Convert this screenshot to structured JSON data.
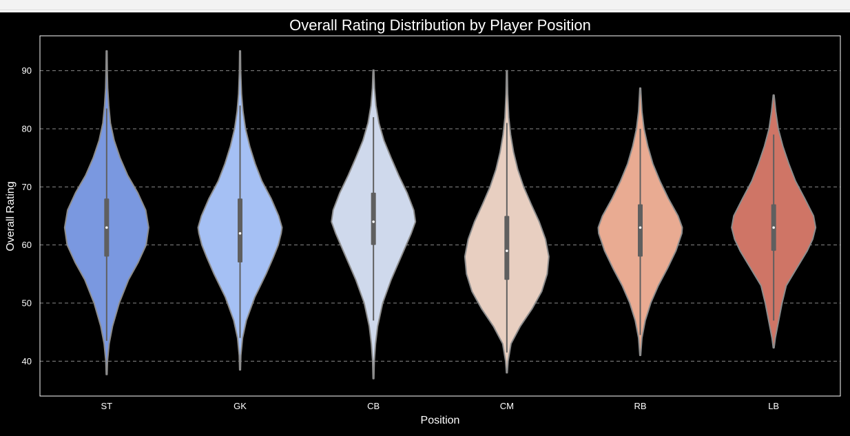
{
  "chart_data": {
    "type": "violin",
    "title": "Overall Rating Distribution by Player Position",
    "xlabel": "Position",
    "ylabel": "Overall Rating",
    "categories": [
      "ST",
      "GK",
      "CB",
      "CM",
      "RB",
      "LB"
    ],
    "ylim": [
      34,
      96
    ],
    "yticks": [
      40,
      50,
      60,
      70,
      80,
      90
    ],
    "grid": true,
    "colors": {
      "background": "#000000",
      "grid": "#8a8a8a",
      "violin_outline": "#8c8c8c",
      "box": "#5f5f5f",
      "median": "#ffffff",
      "axes_frame": "#ffffff"
    },
    "series": [
      {
        "category": "ST",
        "color": "#7a98e0",
        "min": 37.7,
        "max": 93.4,
        "q1": 58,
        "median": 63,
        "q3": 68,
        "whisker_low": 43.5,
        "whisker_high": 83.5,
        "density": [
          [
            37.7,
            0.01
          ],
          [
            40,
            0.02
          ],
          [
            43,
            0.06
          ],
          [
            46,
            0.14
          ],
          [
            50,
            0.3
          ],
          [
            54,
            0.52
          ],
          [
            57,
            0.75
          ],
          [
            60,
            0.94
          ],
          [
            63,
            1.0
          ],
          [
            66,
            0.93
          ],
          [
            69,
            0.74
          ],
          [
            72,
            0.5
          ],
          [
            75,
            0.32
          ],
          [
            78,
            0.18
          ],
          [
            81,
            0.09
          ],
          [
            84,
            0.05
          ],
          [
            87,
            0.025
          ],
          [
            90,
            0.015
          ],
          [
            93.4,
            0.01
          ]
        ]
      },
      {
        "category": "GK",
        "color": "#a5c0f4",
        "min": 38.5,
        "max": 93.4,
        "q1": 57,
        "median": 62,
        "q3": 68,
        "whisker_low": 44,
        "whisker_high": 84,
        "density": [
          [
            38.5,
            0.01
          ],
          [
            41,
            0.02
          ],
          [
            44,
            0.06
          ],
          [
            47,
            0.15
          ],
          [
            51,
            0.35
          ],
          [
            55,
            0.62
          ],
          [
            58,
            0.8
          ],
          [
            60,
            0.91
          ],
          [
            62,
            0.98
          ],
          [
            63,
            1.0
          ],
          [
            65,
            0.92
          ],
          [
            68,
            0.74
          ],
          [
            71,
            0.52
          ],
          [
            74,
            0.36
          ],
          [
            77,
            0.23
          ],
          [
            80,
            0.13
          ],
          [
            83,
            0.07
          ],
          [
            86,
            0.035
          ],
          [
            90,
            0.015
          ],
          [
            93.4,
            0.01
          ]
        ]
      },
      {
        "category": "CB",
        "color": "#cfd9ec",
        "min": 37,
        "max": 90.1,
        "q1": 60,
        "median": 64,
        "q3": 69,
        "whisker_low": 47,
        "whisker_high": 82,
        "density": [
          [
            37,
            0.01
          ],
          [
            40,
            0.02
          ],
          [
            43,
            0.05
          ],
          [
            46,
            0.1
          ],
          [
            50,
            0.22
          ],
          [
            54,
            0.42
          ],
          [
            57,
            0.6
          ],
          [
            60,
            0.78
          ],
          [
            62,
            0.9
          ],
          [
            64,
            1.0
          ],
          [
            66,
            0.96
          ],
          [
            69,
            0.8
          ],
          [
            72,
            0.6
          ],
          [
            75,
            0.42
          ],
          [
            78,
            0.25
          ],
          [
            81,
            0.13
          ],
          [
            84,
            0.06
          ],
          [
            87,
            0.025
          ],
          [
            90.1,
            0.01
          ]
        ]
      },
      {
        "category": "CM",
        "color": "#e8cfc1",
        "min": 38,
        "max": 90,
        "q1": 54,
        "median": 59,
        "q3": 65,
        "whisker_low": 41.5,
        "whisker_high": 81,
        "density": [
          [
            38,
            0.01
          ],
          [
            40,
            0.03
          ],
          [
            43,
            0.1
          ],
          [
            46,
            0.32
          ],
          [
            49,
            0.6
          ],
          [
            52,
            0.83
          ],
          [
            55,
            0.96
          ],
          [
            58,
            1.0
          ],
          [
            61,
            0.92
          ],
          [
            64,
            0.77
          ],
          [
            67,
            0.58
          ],
          [
            70,
            0.4
          ],
          [
            73,
            0.26
          ],
          [
            76,
            0.16
          ],
          [
            79,
            0.09
          ],
          [
            82,
            0.045
          ],
          [
            86,
            0.02
          ],
          [
            90,
            0.01
          ]
        ]
      },
      {
        "category": "RB",
        "color": "#e9ab92",
        "min": 41,
        "max": 87,
        "q1": 58,
        "median": 63,
        "q3": 67,
        "whisker_low": 44.5,
        "whisker_high": 80,
        "density": [
          [
            41,
            0.01
          ],
          [
            44,
            0.04
          ],
          [
            47,
            0.12
          ],
          [
            50,
            0.25
          ],
          [
            53,
            0.43
          ],
          [
            56,
            0.65
          ],
          [
            59,
            0.85
          ],
          [
            62,
            0.99
          ],
          [
            63,
            1.0
          ],
          [
            65,
            0.9
          ],
          [
            68,
            0.67
          ],
          [
            71,
            0.47
          ],
          [
            74,
            0.3
          ],
          [
            77,
            0.18
          ],
          [
            80,
            0.09
          ],
          [
            83,
            0.04
          ],
          [
            87,
            0.01
          ]
        ]
      },
      {
        "category": "LB",
        "color": "#cf7566",
        "min": 42.3,
        "max": 85.8,
        "q1": 59,
        "median": 63,
        "q3": 67,
        "whisker_low": 47,
        "whisker_high": 79,
        "density": [
          [
            42.3,
            0.01
          ],
          [
            44,
            0.04
          ],
          [
            47,
            0.12
          ],
          [
            50,
            0.2
          ],
          [
            53,
            0.3
          ],
          [
            56,
            0.55
          ],
          [
            59,
            0.8
          ],
          [
            61,
            0.93
          ],
          [
            63,
            1.0
          ],
          [
            65,
            0.95
          ],
          [
            68,
            0.74
          ],
          [
            71,
            0.52
          ],
          [
            74,
            0.36
          ],
          [
            77,
            0.22
          ],
          [
            80,
            0.11
          ],
          [
            83,
            0.05
          ],
          [
            85.8,
            0.01
          ]
        ]
      }
    ]
  }
}
